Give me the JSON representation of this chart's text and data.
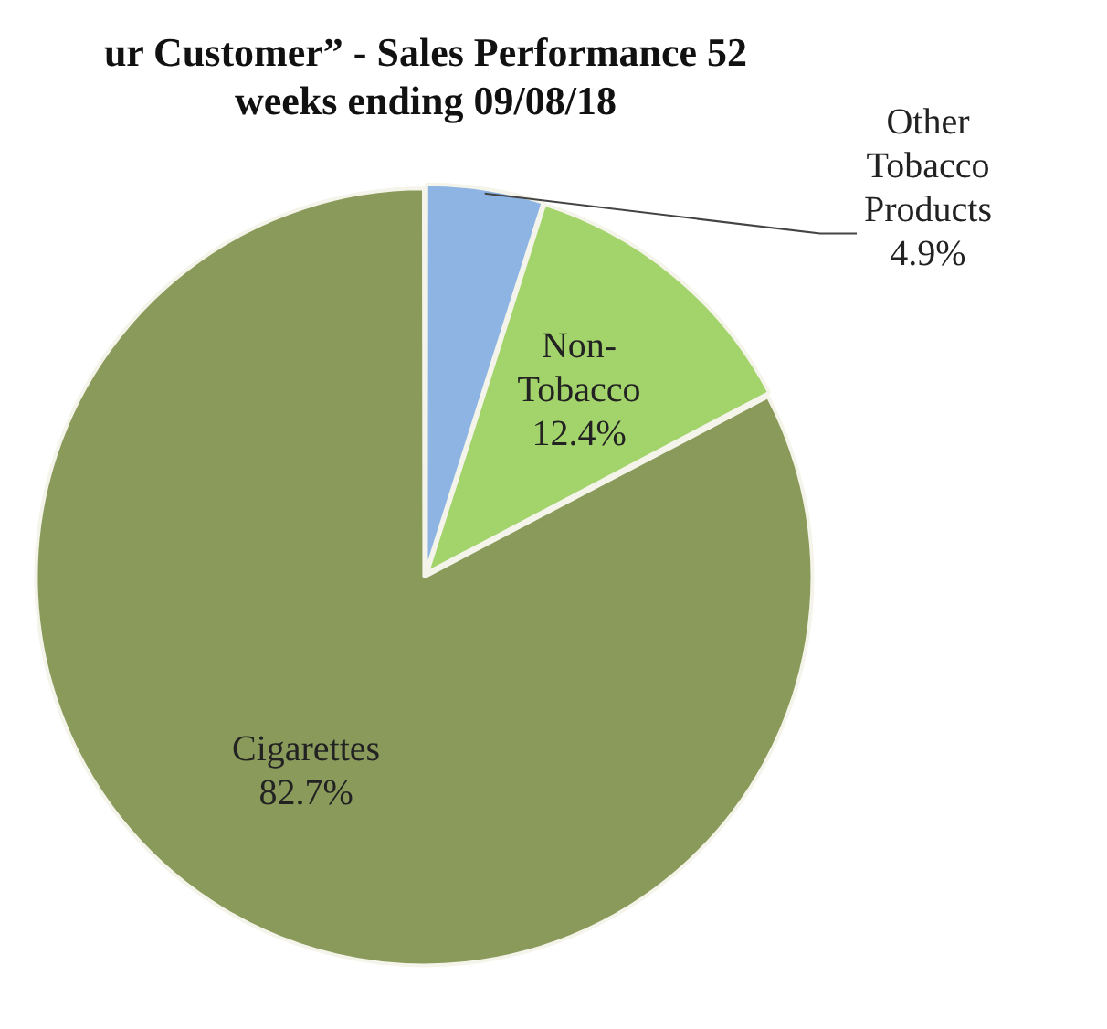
{
  "chart_data": {
    "type": "pie",
    "title": "ur Customer” - Sales Performance 52 weeks ending 09/08/18",
    "categories": [
      "Other Tobacco Products",
      "Non-Tobacco",
      "Cigarettes"
    ],
    "values": [
      4.9,
      12.4,
      82.7
    ],
    "colors": [
      "#8db4e2",
      "#a3d36b",
      "#8a9a5b"
    ],
    "value_labels": [
      "4.9%",
      "12.4%",
      "82.7%"
    ],
    "legend": false
  }
}
